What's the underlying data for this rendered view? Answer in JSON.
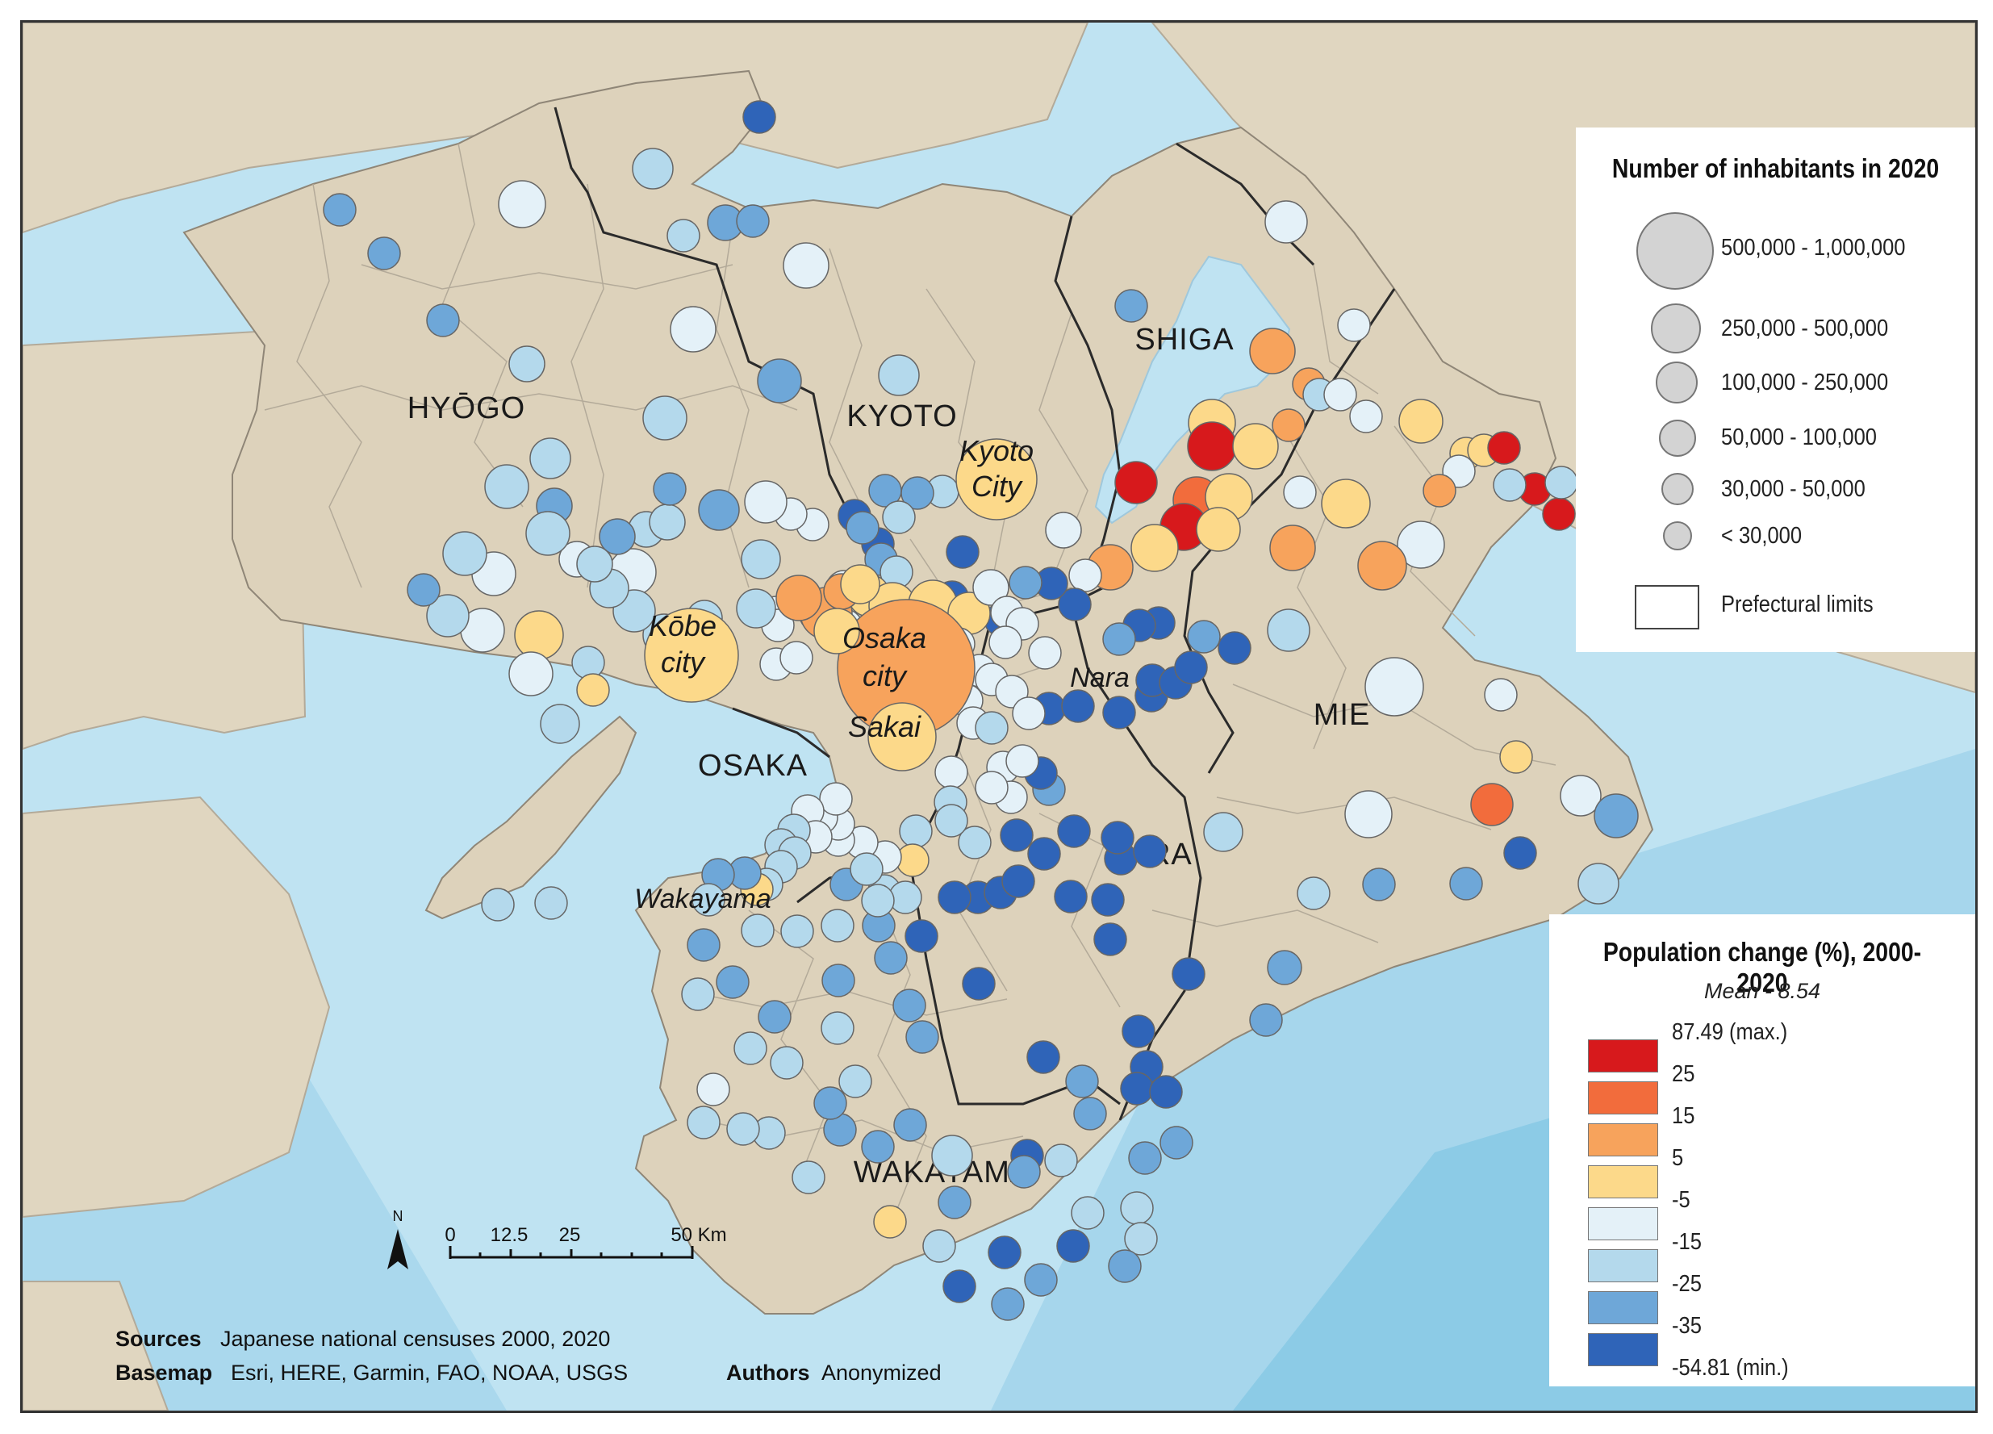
{
  "map": {
    "prefecture_labels": [
      "HYŌGO",
      "KYOTO",
      "SHIGA",
      "MIE",
      "OSAKA",
      "NARA",
      "WAKAYAMA"
    ],
    "city_labels": {
      "kyoto": [
        "Kyoto",
        "City"
      ],
      "kobe": [
        "Kōbe",
        "city"
      ],
      "osaka": [
        "Osaka",
        "city"
      ],
      "sakai": "Sakai",
      "nara": "Nara",
      "wakayama": "Wakayama"
    },
    "colors": {
      "sea": "#bfe3f2",
      "sea_deep": "#8ccbe6",
      "land": "#ddd2bb",
      "land_outside": "#e0d6c0",
      "municipal_border": "#b3aa99",
      "prefectural_border": "#2b2b2b"
    }
  },
  "legend_size": {
    "title": "Number of inhabitants in 2020",
    "classes": [
      "500,000 - 1,000,000",
      "250,000 - 500,000",
      "100,000 - 250,000",
      "50,000 - 100,000",
      "30,000 - 50,000",
      "< 30,000"
    ],
    "prefectural_limits": "Prefectural limits"
  },
  "legend_change": {
    "title": "Population change (%), 2000-2020",
    "mean": "Mean - 8.54",
    "break_labels": [
      "87.49 (max.)",
      "25",
      "15",
      "5",
      "-5",
      "-15",
      "-25",
      "-35",
      "-54.81 (min.)"
    ],
    "class_colors": [
      "#d7191c",
      "#f26c3c",
      "#f7a35c",
      "#fcd98a",
      "#e4f1f8",
      "#b4d9ec",
      "#6ea7d8",
      "#2f64b8"
    ]
  },
  "scale_bar": {
    "north": "N",
    "ticks": [
      "0",
      "12.5",
      "25",
      "50 Km"
    ]
  },
  "credits": {
    "sources_label": "Sources",
    "sources_value": "Japanese national censuses 2000, 2020",
    "basemap_label": "Basemap",
    "basemap_value": "Esri, HERE, Garmin, FAO, NOAA, USGS",
    "authors_label": "Authors",
    "authors_value": "Anonymized"
  }
}
